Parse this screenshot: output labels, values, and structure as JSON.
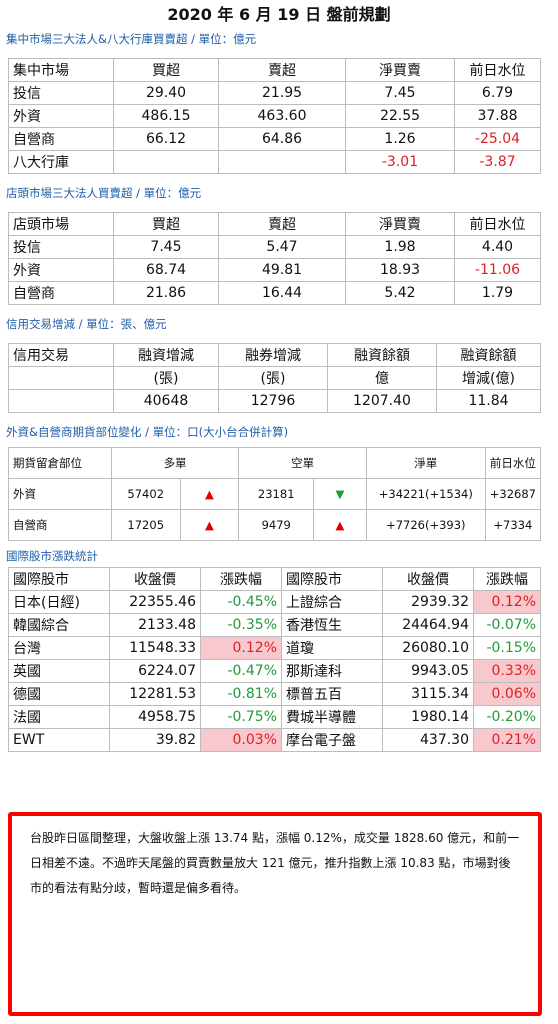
{
  "title": "2020 年 6 月 19 日  盤前規劃",
  "sections": {
    "s1": "集中市場三大法人&八大行庫買賣超 / 單位：億元",
    "s2": "店頭市場三大法人買賣超 / 單位：億元",
    "s3": "信用交易增減 / 單位：張、億元",
    "s4": "外資&自營商期貨部位變化 / 單位：口(大小台合併計算)",
    "s5": "國際股市漲跌統計"
  },
  "t1": {
    "headers": [
      "集中市場",
      "買超",
      "賣超",
      "淨買賣",
      "前日水位"
    ],
    "rows": [
      [
        "投信",
        "29.40",
        "21.95",
        "7.45",
        "6.79"
      ],
      [
        "外資",
        "486.15",
        "463.60",
        "22.55",
        "37.88"
      ],
      [
        "自營商",
        "66.12",
        "64.86",
        "1.26",
        "-25.04"
      ],
      [
        "八大行庫",
        "",
        "",
        "-3.01",
        "-3.87"
      ]
    ]
  },
  "t2": {
    "headers": [
      "店頭市場",
      "買超",
      "賣超",
      "淨買賣",
      "前日水位"
    ],
    "rows": [
      [
        "投信",
        "7.45",
        "5.47",
        "1.98",
        "4.40"
      ],
      [
        "外資",
        "68.74",
        "49.81",
        "18.93",
        "-11.06"
      ],
      [
        "自營商",
        "21.86",
        "16.44",
        "5.42",
        "1.79"
      ]
    ]
  },
  "t3": {
    "h1": [
      "信用交易",
      "融資增減",
      "融券增減",
      "融資餘額",
      "融資餘額"
    ],
    "h2": [
      "",
      "(張)",
      "(張)",
      "億",
      "增減(億)"
    ],
    "row": [
      "",
      "40648",
      "12796",
      "1207.40",
      "11.84"
    ]
  },
  "t4": {
    "headers": [
      "期貨留倉部位",
      "多單",
      "空單",
      "淨單",
      "前日水位"
    ],
    "rows": [
      {
        "name": "外資",
        "long": "57402",
        "long_arrow": "▲",
        "short": "23181",
        "short_arrow": "▼",
        "net": "+34221(+1534)",
        "prev": "+32687"
      },
      {
        "name": "自營商",
        "long": "17205",
        "long_arrow": "▲",
        "short": "9479",
        "short_arrow": "▲",
        "net": "+7726(+393)",
        "prev": "+7334"
      }
    ]
  },
  "t5": {
    "headers": [
      "國際股市",
      "收盤價",
      "漲跌幅",
      "國際股市",
      "收盤價",
      "漲跌幅"
    ],
    "rows": [
      [
        "日本(日經)",
        "22355.46",
        "-0.45%",
        "上證綜合",
        "2939.32",
        "0.12%"
      ],
      [
        "韓國綜合",
        "2133.48",
        "-0.35%",
        "香港恆生",
        "24464.94",
        "-0.07%"
      ],
      [
        "台灣",
        "11548.33",
        "0.12%",
        "道瓊",
        "26080.10",
        "-0.15%"
      ],
      [
        "英國",
        "6224.07",
        "-0.47%",
        "那斯達科",
        "9943.05",
        "0.33%"
      ],
      [
        "德國",
        "12281.53",
        "-0.81%",
        "標普五百",
        "3115.34",
        "0.06%"
      ],
      [
        "法國",
        "4958.75",
        "-0.75%",
        "費城半導體",
        "1980.14",
        "-0.20%"
      ],
      [
        "EWT",
        "39.82",
        "0.03%",
        "摩台電子盤",
        "437.30",
        "0.21%"
      ]
    ]
  },
  "note": "台股昨日區間整理，大盤收盤上漲 13.74 點，漲幅 0.12%，成交量 1828.60 億元，和前一日相差不遠。不過昨天尾盤的買賣數量放大 121 億元，推升指數上漲 10.83 點，市場對後市的看法有點分歧，暫時還是偏多看待。",
  "colors": {
    "section": "#1f5ea8",
    "negative": "#e02020",
    "positive_change": "#239a3b",
    "highlight_bg": "#f8c8cf",
    "note_border": "#ff0000"
  }
}
